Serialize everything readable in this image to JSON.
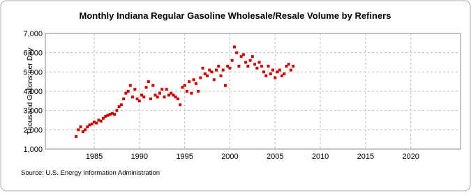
{
  "chart_data": {
    "type": "scatter",
    "title": "Monthly Indiana Regular Gasoline Wholesale/Resale Volume by Refiners",
    "y_label": "Thousand Gallons per Day",
    "source": "Source: U.S. Energy Information Administration",
    "color": "#cc0000",
    "xlim": [
      1979.6,
      2025.5
    ],
    "xticks": [
      1985,
      1990,
      1995,
      2000,
      2005,
      2010,
      2015,
      2020
    ],
    "ylim": [
      1000,
      7000
    ],
    "yticks": [
      {
        "value": 1000,
        "label": "1,000"
      },
      {
        "value": 2000,
        "label": "2,000"
      },
      {
        "value": 3000,
        "label": "3,000"
      },
      {
        "value": 4000,
        "label": "4,000"
      },
      {
        "value": 5000,
        "label": "5,000"
      },
      {
        "value": 6000,
        "label": "6,000"
      },
      {
        "value": 7000,
        "label": "7,000"
      }
    ],
    "grid": true,
    "x": [
      1983,
      1983.25,
      1983.5,
      1983.75,
      1984,
      1984.25,
      1984.5,
      1984.75,
      1985,
      1985.25,
      1985.5,
      1985.75,
      1986,
      1986.25,
      1986.5,
      1986.75,
      1987,
      1987.25,
      1987.5,
      1987.75,
      1988,
      1988.25,
      1988.5,
      1988.75,
      1989,
      1989.25,
      1989.5,
      1989.75,
      1990,
      1990.25,
      1990.5,
      1990.75,
      1991,
      1991.25,
      1991.5,
      1991.75,
      1992,
      1992.25,
      1992.5,
      1992.75,
      1993,
      1993.25,
      1993.5,
      1993.75,
      1994,
      1994.25,
      1994.5,
      1994.75,
      1995,
      1995.25,
      1995.5,
      1995.75,
      1996,
      1996.25,
      1996.5,
      1996.75,
      1997,
      1997.25,
      1997.5,
      1997.75,
      1998,
      1998.25,
      1998.5,
      1998.75,
      1999,
      1999.25,
      1999.5,
      1999.75,
      2000,
      2000.25,
      2000.5,
      2000.75,
      2001,
      2001.25,
      2001.5,
      2001.75,
      2002,
      2002.25,
      2002.5,
      2002.75,
      2003,
      2003.25,
      2003.5,
      2003.75,
      2004,
      2004.25,
      2004.5,
      2004.75,
      2005,
      2005.25,
      2005.5,
      2005.75,
      2006,
      2006.25,
      2006.5,
      2006.75,
      2007
    ],
    "values": [
      1650,
      2000,
      2150,
      1900,
      2000,
      2150,
      2250,
      2300,
      2400,
      2350,
      2500,
      2450,
      2600,
      2700,
      2750,
      2800,
      2850,
      2800,
      3000,
      3200,
      3300,
      3600,
      3900,
      4000,
      4300,
      3700,
      4100,
      3600,
      3500,
      3800,
      3700,
      4200,
      4500,
      3600,
      4300,
      3800,
      3700,
      3900,
      4100,
      3700,
      4100,
      3800,
      3900,
      3800,
      3700,
      3600,
      3300,
      4200,
      4300,
      4000,
      4500,
      3900,
      4600,
      4400,
      4000,
      4700,
      5200,
      4900,
      4800,
      5100,
      5000,
      4600,
      5100,
      5300,
      4800,
      5100,
      4300,
      5300,
      5200,
      5600,
      6300,
      6000,
      5300,
      5800,
      5900,
      5500,
      5300,
      5600,
      5800,
      5400,
      5200,
      5500,
      5300,
      5000,
      4800,
      5300,
      4900,
      5100,
      4700,
      5000,
      5100,
      4800,
      4900,
      5300,
      5400,
      5100,
      5300
    ]
  }
}
